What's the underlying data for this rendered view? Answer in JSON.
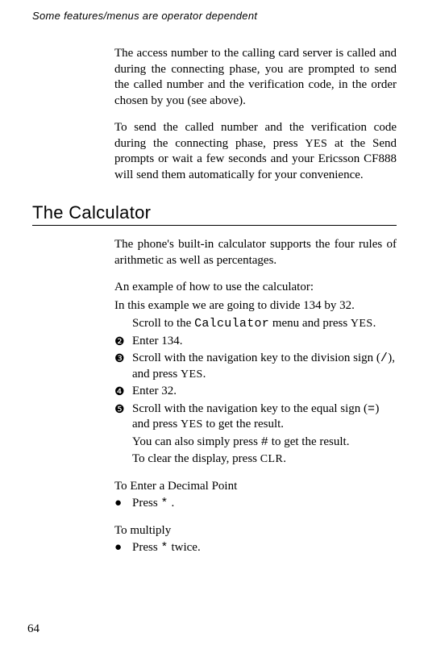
{
  "operatorNote": "Some features/menus are operator dependent",
  "intro": {
    "p1_a": "The access number to the calling card server is called and during the connecting phase, you are prompted to send the called number and the verification code, in the order chosen by you (see above).",
    "p2_a": "To send the called number and the verification code during the connecting phase, press ",
    "p2_b": " at the Send prompts or wait a few seconds and your Ericsson CF888 will send them automatically for your convenience."
  },
  "sectionTitle": "The Calculator",
  "calc": {
    "p1": "The phone's built-in calculator supports the four rules of arithmetic as well as percentages.",
    "p2": "An example of how to use the calculator:",
    "p3": "In this example we are going to divide 134 by 32.",
    "step1_a": "Scroll to the ",
    "calcWord": "Calculator",
    "step1_b": " menu and press ",
    "step2": "Enter 134.",
    "step3_a": "Scroll with the navigation key to the division sign (",
    "slash": "/",
    "step3_b": "), and press ",
    "step4": "Enter 32.",
    "step5_a": "Scroll with the navigation key to the equal sign (",
    "eq": "=",
    "step5_b": ") and press ",
    "step5_c": " to get the result.",
    "extra1_a": "You can also simply press ",
    "hash": "#",
    "extra1_b": " to get the result.",
    "extra2_a": "To clear the display, press ",
    "extra2_b": "."
  },
  "decimalHeading": "To Enter a Decimal Point",
  "decimal_a": "Press ",
  "star": "*",
  "decimal_b": " .",
  "multiplyHeading": "To multiply",
  "multiply_a": "Press ",
  "multiply_b": " twice.",
  "yes": "YES",
  "clr": "CLR",
  "pageNum": "64",
  "markers": {
    "m2": "❷",
    "m3": "❸",
    "m4": "❹",
    "m5": "❺",
    "bullet": "●"
  }
}
